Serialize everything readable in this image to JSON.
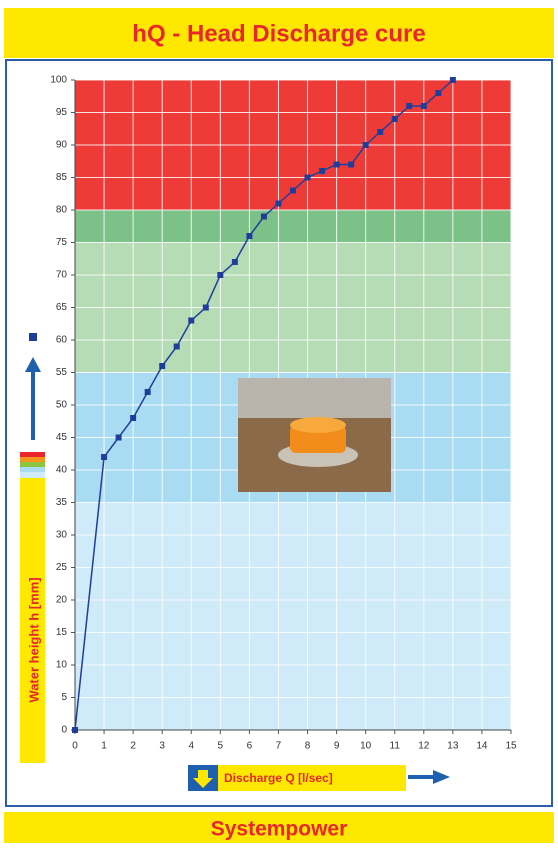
{
  "chart_data": {
    "type": "line",
    "title": "hQ - Head Discharge cure",
    "x_label": "Discharge Q [l/sec]",
    "y_label": "Water height h [mm]",
    "x": [
      0,
      1,
      1.5,
      2,
      2.5,
      3,
      3.5,
      4,
      4.5,
      5,
      5.5,
      6,
      6.5,
      7,
      7.5,
      8,
      8.5,
      9,
      9.5,
      10,
      10.5,
      11,
      11.5,
      12,
      12.5,
      13
    ],
    "series": [
      {
        "color": "#1f3e9c",
        "values": [
          0,
          42,
          45,
          48,
          52,
          56,
          59,
          63,
          65,
          70,
          72,
          76,
          79,
          81,
          83,
          85,
          86,
          87,
          87,
          90,
          92,
          94,
          96,
          96,
          98,
          100
        ]
      }
    ],
    "zones": [
      {
        "from": 0,
        "to": 35,
        "color": "#cfeaf8"
      },
      {
        "from": 35,
        "to": 55,
        "color": "#a9dcf2"
      },
      {
        "from": 55,
        "to": 75,
        "color": "#b5dcb5"
      },
      {
        "from": 75,
        "to": 80,
        "color": "#7cc187"
      },
      {
        "from": 80,
        "to": 100,
        "color": "#ee3b37"
      }
    ],
    "xlim": [
      0,
      15
    ],
    "xticks": [
      0,
      1,
      2,
      3,
      4,
      5,
      6,
      7,
      8,
      9,
      10,
      11,
      12,
      13,
      14,
      15
    ],
    "ylim": [
      0,
      100
    ],
    "yticks": [
      0,
      5,
      10,
      15,
      20,
      25,
      30,
      35,
      40,
      45,
      50,
      55,
      60,
      65,
      70,
      75,
      80,
      85,
      90,
      95,
      100
    ],
    "grid": true
  },
  "footer": "Systempower"
}
